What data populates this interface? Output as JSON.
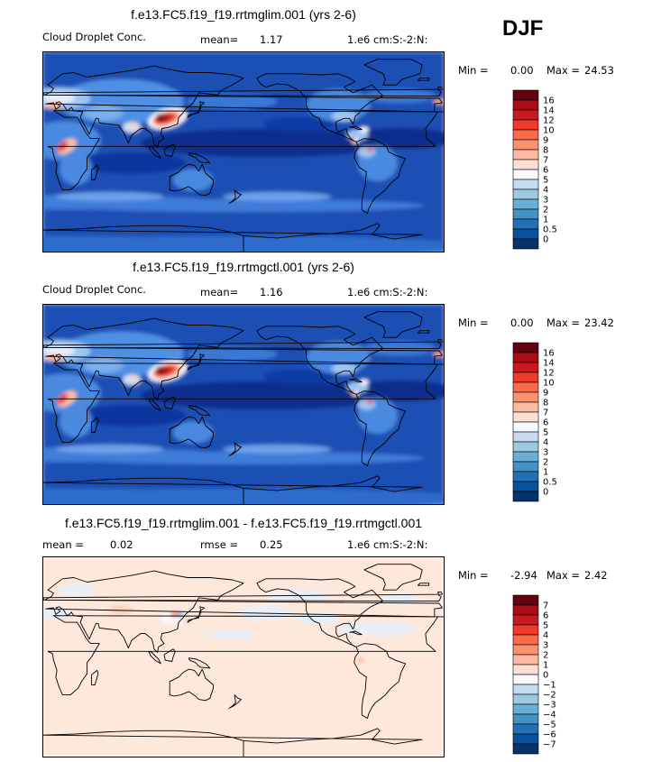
{
  "season": "DJF",
  "panels": [
    {
      "title": "f.e13.FC5.f19_f19.rrtmglim.001 (yrs 2-6)",
      "left": "Cloud Droplet Conc.",
      "mid_label": "mean=",
      "mid_value": "1.17",
      "units": "1.e6 cm:S:-2:N:",
      "min_label": "Min =",
      "min": "0.00",
      "max_label": "Max =",
      "max": "24.53"
    },
    {
      "title": "f.e13.FC5.f19_f19.rrtmgctl.001 (yrs 2-6)",
      "left": "Cloud Droplet Conc.",
      "mid_label": "mean=",
      "mid_value": "1.16",
      "units": "1.e6 cm:S:-2:N:",
      "min_label": "Min =",
      "min": "0.00",
      "max_label": "Max =",
      "max": "23.42"
    },
    {
      "title": "f.e13.FC5.f19_f19.rrtmglim.001 - f.e13.FC5.f19_f19.rrtmgctl.001",
      "left_label": "mean =",
      "left_value": "0.02",
      "mid_label": "rmse =",
      "mid_value": "0.25",
      "units": "1.e6 cm:S:-2:N:",
      "min_label": "Min =",
      "min": "-2.94",
      "max_label": "Max =",
      "max": "2.42"
    }
  ],
  "chart_data": [
    {
      "type": "heatmap",
      "title": "f.e13.FC5.f19_f19.rrtmglim.001 (yrs 2-6)",
      "variable": "Cloud Droplet Conc.",
      "units": "1.e6 cm:S:-2:N:",
      "season": "DJF",
      "mean": 1.17,
      "min": 0.0,
      "max": 24.53,
      "levels": [
        "16",
        "14",
        "12",
        "10",
        "9",
        "8",
        "7",
        "6",
        "5",
        "4",
        "3",
        "2",
        "1",
        "0.5",
        "0"
      ],
      "colors": [
        "#67000d",
        "#a50f15",
        "#cb181d",
        "#ef3b2c",
        "#fb6a4a",
        "#fc9272",
        "#fcbba1",
        "#fee0d2",
        "#f7fbff",
        "#c6dbef",
        "#9ecae1",
        "#6baed6",
        "#4292c6",
        "#2171b5",
        "#08519c",
        "#08306b"
      ]
    },
    {
      "type": "heatmap",
      "title": "f.e13.FC5.f19_f19.rrtmgctl.001 (yrs 2-6)",
      "variable": "Cloud Droplet Conc.",
      "units": "1.e6 cm:S:-2:N:",
      "season": "DJF",
      "mean": 1.16,
      "min": 0.0,
      "max": 23.42,
      "levels": [
        "16",
        "14",
        "12",
        "10",
        "9",
        "8",
        "7",
        "6",
        "5",
        "4",
        "3",
        "2",
        "1",
        "0.5",
        "0"
      ],
      "colors": [
        "#67000d",
        "#a50f15",
        "#cb181d",
        "#ef3b2c",
        "#fb6a4a",
        "#fc9272",
        "#fcbba1",
        "#fee0d2",
        "#f7fbff",
        "#c6dbef",
        "#9ecae1",
        "#6baed6",
        "#4292c6",
        "#2171b5",
        "#08519c",
        "#08306b"
      ]
    },
    {
      "type": "heatmap",
      "title": "f.e13.FC5.f19_f19.rrtmglim.001 - f.e13.FC5.f19_f19.rrtmgctl.001",
      "units": "1.e6 cm:S:-2:N:",
      "season": "DJF",
      "mean": 0.02,
      "rmse": 0.25,
      "min": -2.94,
      "max": 2.42,
      "levels": [
        "7",
        "6",
        "5",
        "4",
        "3",
        "2",
        "1",
        "0",
        "−1",
        "−2",
        "−3",
        "−4",
        "−5",
        "−6",
        "−7"
      ],
      "colors": [
        "#67000d",
        "#a50f15",
        "#cb181d",
        "#ef3b2c",
        "#fb6a4a",
        "#fc9272",
        "#fcbba1",
        "#fee0d2",
        "#f7fbff",
        "#c6dbef",
        "#9ecae1",
        "#6baed6",
        "#4292c6",
        "#2171b5",
        "#08519c",
        "#08306b"
      ]
    }
  ]
}
